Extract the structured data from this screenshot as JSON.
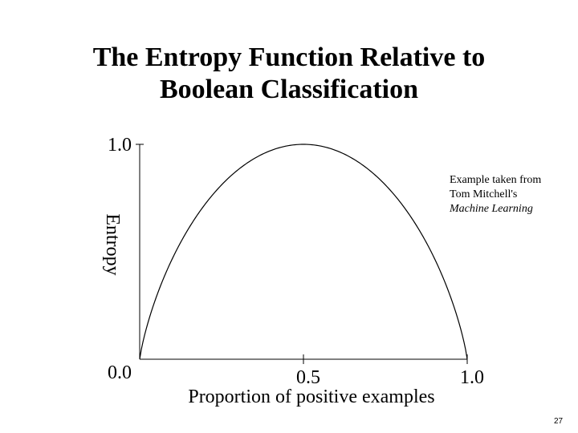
{
  "slide": {
    "title_line1": "The Entropy Function Relative to",
    "title_line2": "Boolean Classification",
    "note_line1": "Example taken from",
    "note_line2": "Tom Mitchell's",
    "note_line3": "Machine Learning",
    "page_number": "27"
  },
  "chart_data": {
    "type": "line",
    "title": "",
    "xlabel": "Proportion of positive examples",
    "ylabel": "Entropy",
    "xlim": [
      0,
      1
    ],
    "ylim": [
      0,
      1
    ],
    "x_tick_labels": [
      "0.5",
      "1.0"
    ],
    "y_tick_labels": [
      "1.0",
      "0.0"
    ],
    "grid": false,
    "legend": "none",
    "series": [
      {
        "x": [
          0,
          0.05,
          0.1,
          0.15,
          0.2,
          0.25,
          0.3,
          0.35,
          0.4,
          0.45,
          0.5,
          0.55,
          0.6,
          0.65,
          0.7,
          0.75,
          0.8,
          0.85,
          0.9,
          0.95,
          1.0
        ],
        "y": [
          0,
          0.286,
          0.469,
          0.61,
          0.722,
          0.811,
          0.881,
          0.934,
          0.971,
          0.993,
          1.0,
          0.993,
          0.971,
          0.934,
          0.881,
          0.811,
          0.722,
          0.61,
          0.469,
          0.286,
          0
        ]
      }
    ]
  }
}
